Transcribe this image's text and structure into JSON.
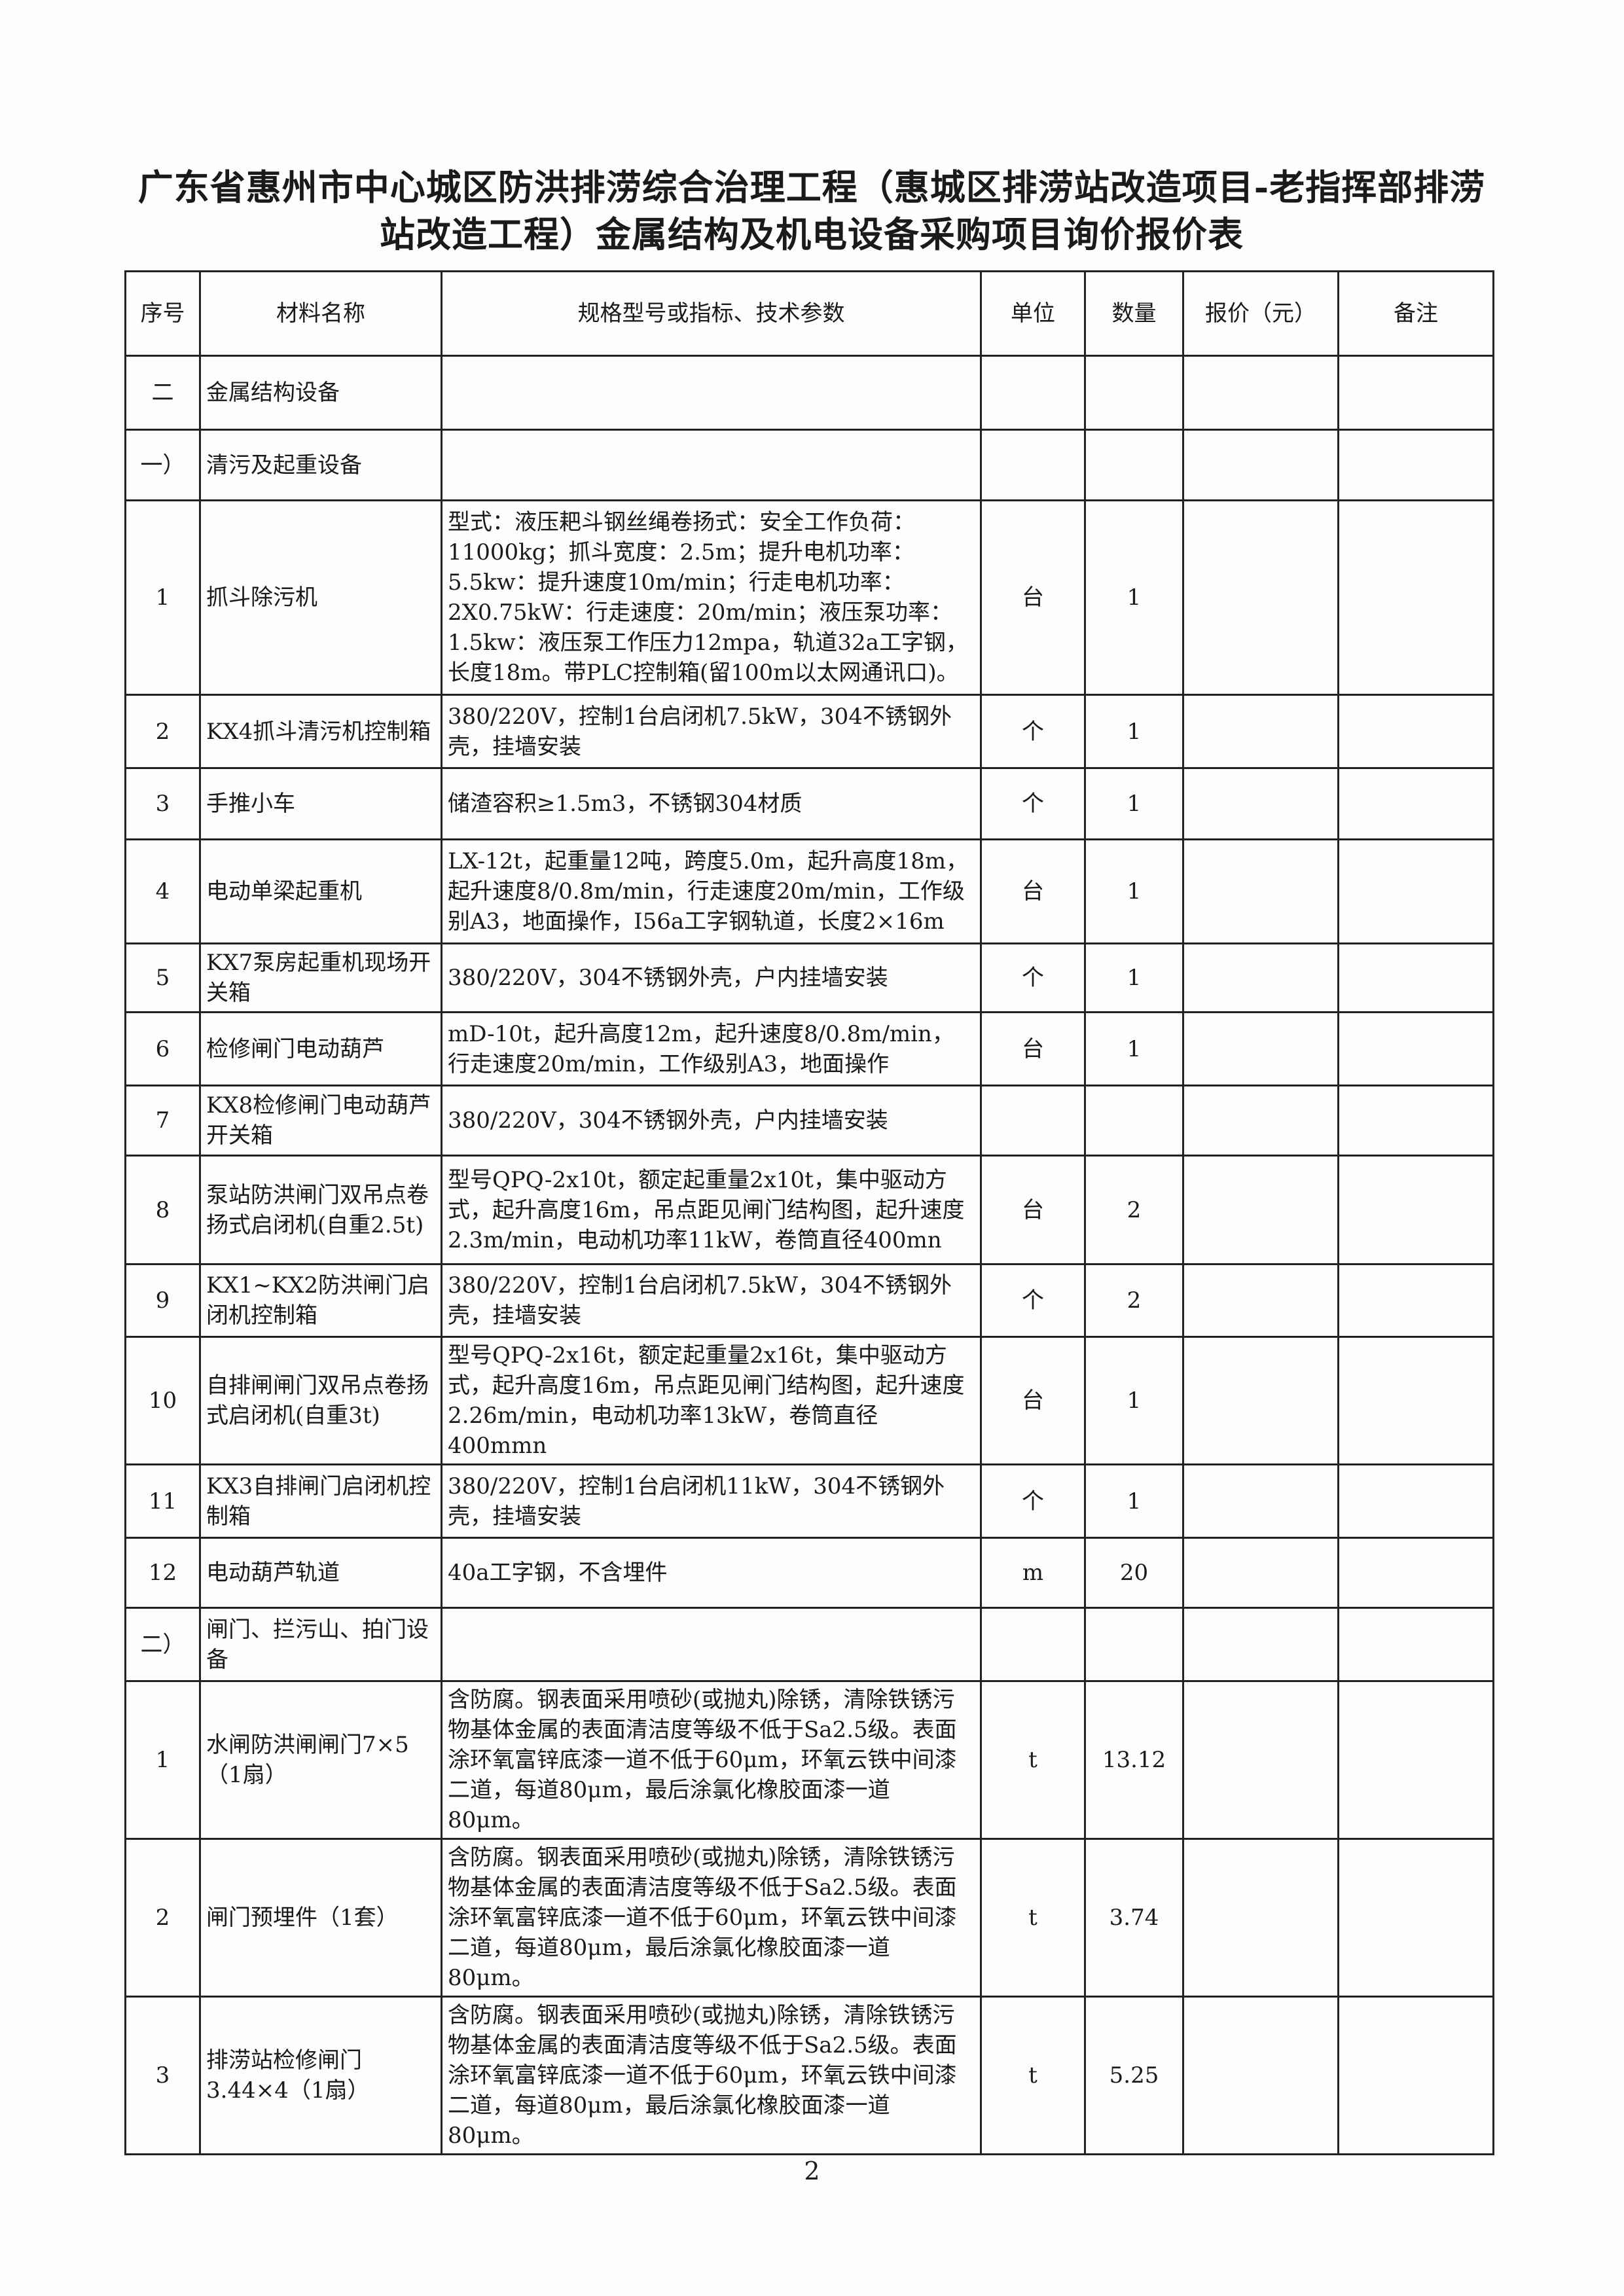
{
  "title": {
    "line1": "广东省惠州市中心城区防洪排涝综合治理工程（惠城区排涝站改造项目-老指挥部排涝",
    "line2": "站改造工程）金属结构及机电设备采购项目询价报价表"
  },
  "table": {
    "headers": [
      "序号",
      "材料名称",
      "规格型号或指标、技术参数",
      "单位",
      "数量",
      "报价（元）",
      "备注"
    ],
    "rows": [
      {
        "no": "二",
        "name": "金属结构设备",
        "spec": "",
        "unit": "",
        "qty": "",
        "price": "",
        "note": ""
      },
      {
        "no": "一）",
        "name": "清污及起重设备",
        "spec": "",
        "unit": "",
        "qty": "",
        "price": "",
        "note": ""
      },
      {
        "no": "1",
        "name": "抓斗除污机",
        "spec": "型式：液压耙斗钢丝绳卷扬式：安全工作负荷：11000kg；抓斗宽度：2.5m；提升电机功率：5.5kw：提升速度10m/min；行走电机功率：2X0.75kW：行走速度：20m/min；液压泵功率：1.5kw：液压泵工作压力12mpa，轨道32a工字钢，长度18m。带PLC控制箱(留100m以太网通讯口)。",
        "unit": "台",
        "qty": "1",
        "price": "",
        "note": ""
      },
      {
        "no": "2",
        "name": "KX4抓斗清污机控制箱",
        "spec": "380/220V，控制1台启闭机7.5kW，304不锈钢外壳，挂墙安装",
        "unit": "个",
        "qty": "1",
        "price": "",
        "note": ""
      },
      {
        "no": "3",
        "name": "手推小车",
        "spec": "储渣容积≥1.5m3，不锈钢304材质",
        "unit": "个",
        "qty": "1",
        "price": "",
        "note": ""
      },
      {
        "no": "4",
        "name": "电动单梁起重机",
        "spec": "LX-12t，起重量12吨，跨度5.0m，起升高度18m，起升速度8/0.8m/min，行走速度20m/min，工作级别A3，地面操作，I56a工字钢轨道，长度2×16m",
        "unit": "台",
        "qty": "1",
        "price": "",
        "note": ""
      },
      {
        "no": "5",
        "name": "KX7泵房起重机现场开关箱",
        "spec": "380/220V，304不锈钢外壳，户内挂墙安装",
        "unit": "个",
        "qty": "1",
        "price": "",
        "note": ""
      },
      {
        "no": "6",
        "name": "检修闸门电动葫芦",
        "spec": "mD-10t，起升高度12m，起升速度8/0.8m/min，行走速度20m/min，工作级别A3，地面操作",
        "unit": "台",
        "qty": "1",
        "price": "",
        "note": ""
      },
      {
        "no": "7",
        "name": "KX8检修闸门电动葫芦开关箱",
        "spec": "380/220V，304不锈钢外壳，户内挂墙安装",
        "unit": "",
        "qty": "",
        "price": "",
        "note": ""
      },
      {
        "no": "8",
        "name": "泵站防洪闸门双吊点卷扬式启闭机(自重2.5t)",
        "spec": "型号QPQ-2x10t，额定起重量2x10t，集中驱动方式，起升高度16m，吊点距见闸门结构图，起升速度2.3m/min，电动机功率11kW，卷筒直径400mn",
        "unit": "台",
        "qty": "2",
        "price": "",
        "note": ""
      },
      {
        "no": "9",
        "name": "KX1~KX2防洪闸门启闭机控制箱",
        "spec": "380/220V，控制1台启闭机7.5kW，304不锈钢外壳，挂墙安装",
        "unit": "个",
        "qty": "2",
        "price": "",
        "note": ""
      },
      {
        "no": "10",
        "name": "自排闸闸门双吊点卷扬式启闭机(自重3t)",
        "spec": "型号QPQ-2x16t，额定起重量2x16t，集中驱动方式，起升高度16m，吊点距见闸门结构图，起升速度2.26m/min，电动机功率13kW，卷筒直径400mmn",
        "unit": "台",
        "qty": "1",
        "price": "",
        "note": ""
      },
      {
        "no": "11",
        "name": "KX3自排闸门启闭机控制箱",
        "spec": "380/220V，控制1台启闭机11kW，304不锈钢外壳，挂墙安装",
        "unit": "个",
        "qty": "1",
        "price": "",
        "note": ""
      },
      {
        "no": "12",
        "name": "电动葫芦轨道",
        "spec": "40a工字钢，不含埋件",
        "unit": "m",
        "qty": "20",
        "price": "",
        "note": ""
      },
      {
        "no": "二）",
        "name": "闸门、拦污山、拍门设备",
        "spec": "",
        "unit": "",
        "qty": "",
        "price": "",
        "note": ""
      },
      {
        "no": "1",
        "name": "水闸防洪闸闸门7×5（1扇）",
        "spec": "含防腐。钢表面采用喷砂(或抛丸)除锈，清除铁锈污物基体金属的表面清洁度等级不低于Sa2.5级。表面涂环氧富锌底漆一道不低于60μm，环氧云铁中间漆二道，每道80μm，最后涂氯化橡胶面漆一道80μm。",
        "unit": "t",
        "qty": "13.12",
        "price": "",
        "note": ""
      },
      {
        "no": "2",
        "name": "闸门预埋件（1套）",
        "spec": "含防腐。钢表面采用喷砂(或抛丸)除锈，清除铁锈污物基体金属的表面清洁度等级不低于Sa2.5级。表面涂环氧富锌底漆一道不低于60μm，环氧云铁中间漆二道，每道80μm，最后涂氯化橡胶面漆一道80μm。",
        "unit": "t",
        "qty": "3.74",
        "price": "",
        "note": ""
      },
      {
        "no": "3",
        "name": "排涝站检修闸门3.44×4（1扇）",
        "spec": "含防腐。钢表面采用喷砂(或抛丸)除锈，清除铁锈污物基体金属的表面清洁度等级不低于Sa2.5级。表面涂环氧富锌底漆一道不低于60μm，环氧云铁中间漆二道，每道80μm，最后涂氯化橡胶面漆一道80μm。",
        "unit": "t",
        "qty": "5.25",
        "price": "",
        "note": ""
      }
    ]
  },
  "page_number": "2"
}
